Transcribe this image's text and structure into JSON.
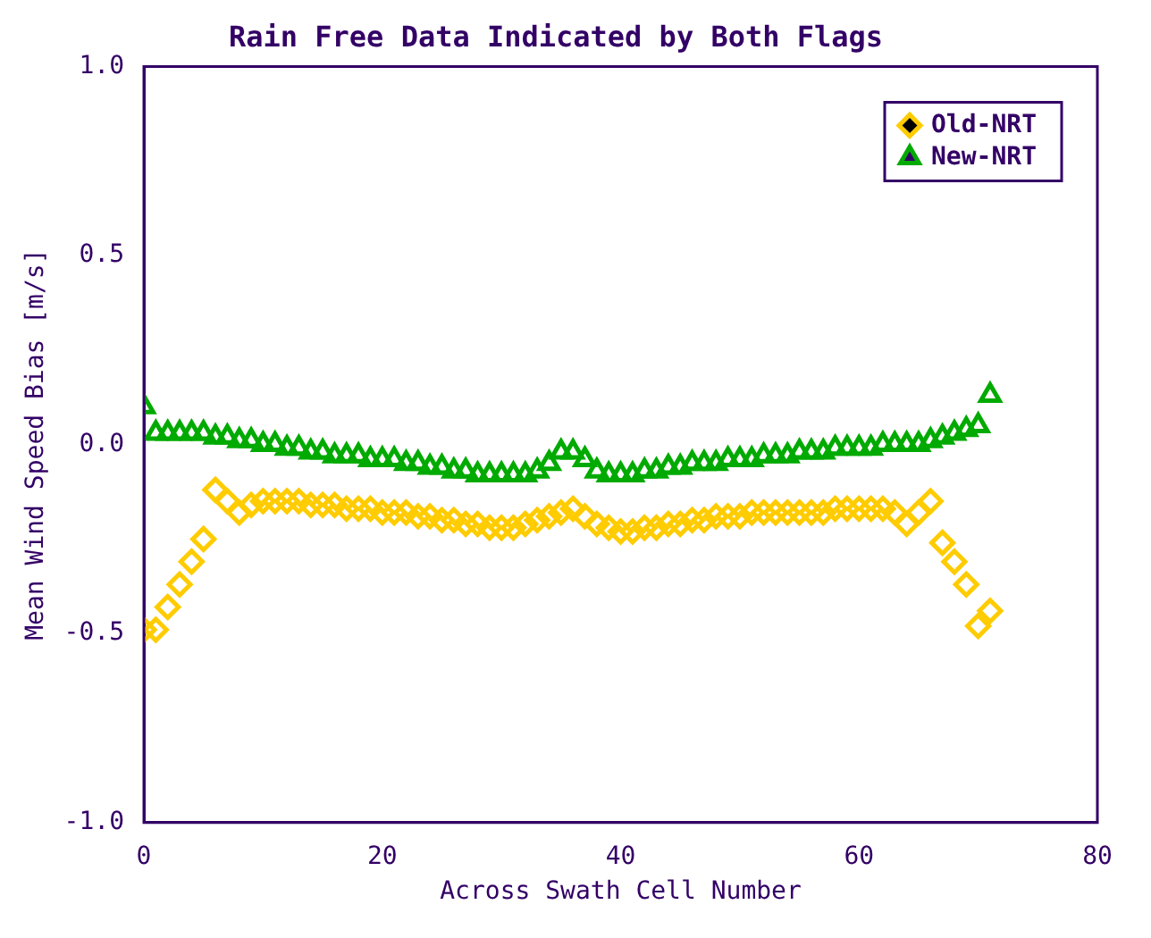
{
  "chart_data": {
    "type": "scatter",
    "title": "Rain Free Data Indicated by Both Flags",
    "xlabel": "Across Swath Cell Number",
    "ylabel": "Mean Wind Speed Bias [m/s]",
    "x": [
      0,
      1,
      2,
      3,
      4,
      5,
      6,
      7,
      8,
      9,
      10,
      11,
      12,
      13,
      14,
      15,
      16,
      17,
      18,
      19,
      20,
      21,
      22,
      23,
      24,
      25,
      26,
      27,
      28,
      29,
      30,
      31,
      32,
      33,
      34,
      35,
      36,
      37,
      38,
      39,
      40,
      41,
      42,
      43,
      44,
      45,
      46,
      47,
      48,
      49,
      50,
      51,
      52,
      53,
      54,
      55,
      56,
      57,
      58,
      59,
      60,
      61,
      62,
      63,
      64,
      65,
      66,
      67,
      68,
      69,
      70,
      71
    ],
    "series": [
      {
        "name": "Old-NRT",
        "color": "#ffcc00",
        "marker": "diamond",
        "values": [
          -0.49,
          -0.49,
          -0.43,
          -0.37,
          -0.31,
          -0.25,
          -0.12,
          -0.15,
          -0.18,
          -0.16,
          -0.15,
          -0.15,
          -0.15,
          -0.15,
          -0.16,
          -0.16,
          -0.16,
          -0.17,
          -0.17,
          -0.17,
          -0.18,
          -0.18,
          -0.18,
          -0.19,
          -0.19,
          -0.2,
          -0.2,
          -0.21,
          -0.21,
          -0.22,
          -0.22,
          -0.22,
          -0.21,
          -0.2,
          -0.19,
          -0.18,
          -0.17,
          -0.19,
          -0.21,
          -0.22,
          -0.23,
          -0.23,
          -0.22,
          -0.22,
          -0.21,
          -0.21,
          -0.2,
          -0.2,
          -0.19,
          -0.19,
          -0.19,
          -0.18,
          -0.18,
          -0.18,
          -0.18,
          -0.18,
          -0.18,
          -0.18,
          -0.17,
          -0.17,
          -0.17,
          -0.17,
          -0.17,
          -0.18,
          -0.21,
          -0.18,
          -0.15,
          -0.26,
          -0.31,
          -0.37,
          -0.48,
          -0.44
        ]
      },
      {
        "name": "New-NRT",
        "color": "#00aa00",
        "marker": "triangle",
        "values": [
          0.1,
          0.03,
          0.03,
          0.03,
          0.03,
          0.03,
          0.02,
          0.02,
          0.01,
          0.01,
          0.0,
          0.0,
          -0.01,
          -0.01,
          -0.02,
          -0.02,
          -0.03,
          -0.03,
          -0.03,
          -0.04,
          -0.04,
          -0.04,
          -0.05,
          -0.05,
          -0.06,
          -0.06,
          -0.07,
          -0.07,
          -0.08,
          -0.08,
          -0.08,
          -0.08,
          -0.08,
          -0.07,
          -0.05,
          -0.02,
          -0.02,
          -0.04,
          -0.07,
          -0.08,
          -0.08,
          -0.08,
          -0.07,
          -0.07,
          -0.06,
          -0.06,
          -0.05,
          -0.05,
          -0.05,
          -0.04,
          -0.04,
          -0.04,
          -0.03,
          -0.03,
          -0.03,
          -0.02,
          -0.02,
          -0.02,
          -0.01,
          -0.01,
          -0.01,
          -0.01,
          0.0,
          0.0,
          0.0,
          0.0,
          0.01,
          0.02,
          0.03,
          0.04,
          0.05,
          0.13
        ]
      }
    ],
    "xlim": [
      0,
      80
    ],
    "xticks": [
      0,
      20,
      40,
      60,
      80
    ],
    "ylim": [
      -1.0,
      1.0
    ],
    "yticks": [
      {
        "value": -1.0,
        "label": "-1.0"
      },
      {
        "value": -0.5,
        "label": "-0.5"
      },
      {
        "value": 0,
        "label": "0.0"
      },
      {
        "value": 0.5,
        "label": "0.5"
      },
      {
        "value": 1.0,
        "label": "1.0"
      }
    ],
    "grid": false,
    "legend": "top right"
  }
}
